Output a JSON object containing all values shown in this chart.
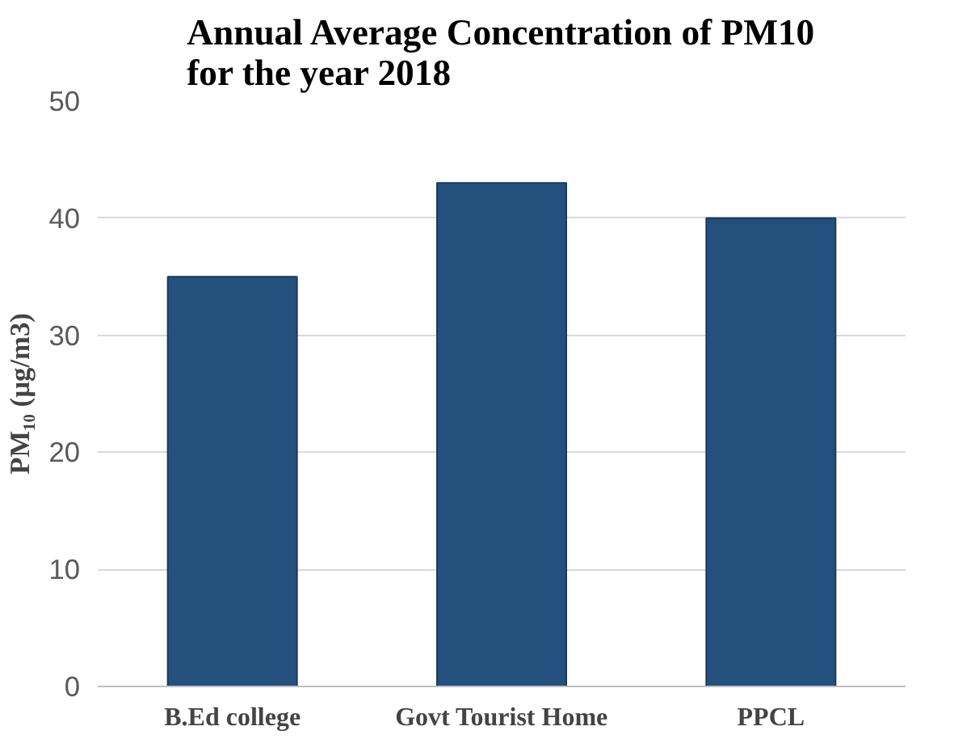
{
  "chart_data": {
    "type": "bar",
    "title": "Annual Average Concentration of PM10 for the year 2018",
    "ylabel": "PM₁₀ (µg/m3)",
    "categories": [
      "B.Ed college",
      "Govt Tourist Home",
      "PPCL"
    ],
    "values": [
      35,
      43,
      40
    ],
    "color": "#24507e",
    "ylim": [
      0,
      50
    ],
    "yticks": [
      0,
      10,
      20,
      30,
      40,
      50
    ],
    "grid": "y"
  }
}
